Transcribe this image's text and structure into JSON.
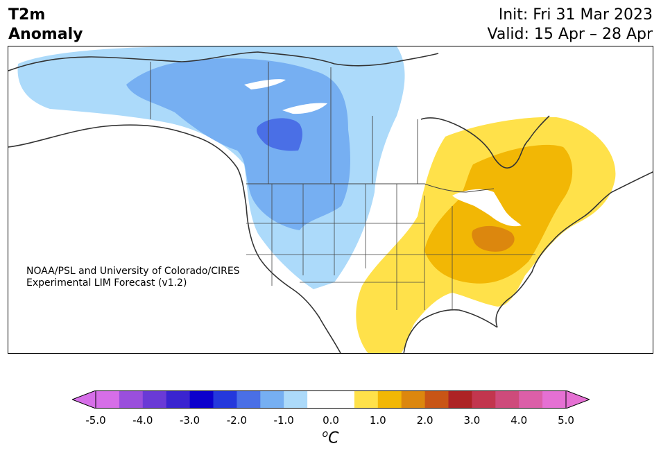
{
  "header": {
    "variable": "T2m",
    "product": "Anomaly",
    "init": "Init: Fri 31 Mar 2023",
    "valid": "Valid: 15 Apr – 28 Apr"
  },
  "credit": {
    "line1": "NOAA/PSL and University of Colorado/CIRES",
    "line2": "Experimental LIM Forecast (v1.2)"
  },
  "colorbar": {
    "ticks": [
      "-5.0",
      "-4.0",
      "-3.0",
      "-2.0",
      "-1.0",
      "0.0",
      "1.0",
      "2.0",
      "3.0",
      "4.0",
      "5.0"
    ],
    "unit_sup": "o",
    "unit": "C",
    "levels": [
      -5.0,
      5.0
    ],
    "colors": [
      "#d66ee8",
      "#9a4fdc",
      "#6a3ad6",
      "#3a24d0",
      "#0c00cc",
      "#2438dc",
      "#4a6fe6",
      "#76aff2",
      "#acdafa",
      "#ffffff",
      "#ffffff",
      "#ffe14a",
      "#f2b705",
      "#dc870e",
      "#c85516",
      "#ad2324",
      "#c2364e",
      "#ce4b7b",
      "#db5fa8",
      "#e570d3"
    ],
    "extend": "both"
  },
  "map": {
    "region": "North America",
    "shading": {
      "cold_light": "#acdafa",
      "cold_mid": "#76aff2",
      "cold_dark": "#4a6fe6",
      "warm_light": "#ffe14a",
      "warm_mid": "#f2b705",
      "warm_dark": "#dc870e"
    }
  }
}
